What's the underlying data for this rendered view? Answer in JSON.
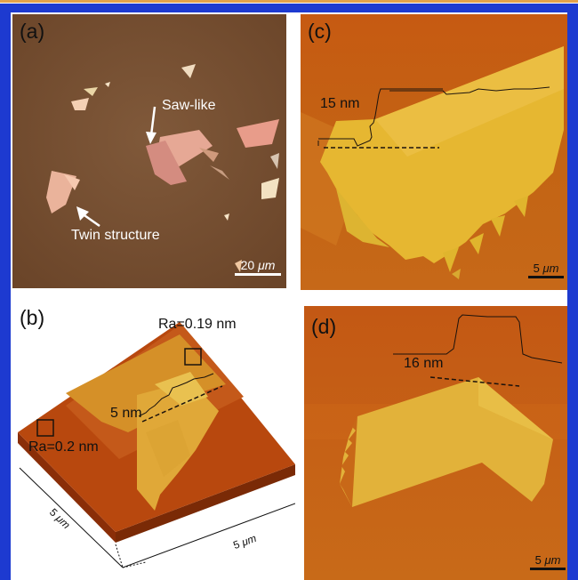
{
  "panels": {
    "a": {
      "label": "(a)",
      "annotation_sawlike": "Saw-like",
      "annotation_twin": "Twin structure",
      "scale_bar_value": "20",
      "scale_bar_unit": "μm"
    },
    "b": {
      "label": "(b)",
      "roughness_top": "Ra=0.19 nm",
      "roughness_left": "Ra=0.2 nm",
      "step_height": "5 nm",
      "axis_left_value": "5",
      "axis_left_unit": "μm",
      "axis_right_value": "5",
      "axis_right_unit": "μm"
    },
    "c": {
      "label": "(c)",
      "step_height": "15 nm",
      "scale_bar_value": "5",
      "scale_bar_unit": "μm"
    },
    "d": {
      "label": "(d)",
      "step_height": "16 nm",
      "scale_bar_value": "5",
      "scale_bar_unit": "μm"
    }
  },
  "colors": {
    "frame_border": "#1d3ad0",
    "top_rule": "#e3a24a",
    "optical_background": "#7a5233",
    "afm_dark": "#b84a0a",
    "afm_bright": "#e8c23a"
  }
}
